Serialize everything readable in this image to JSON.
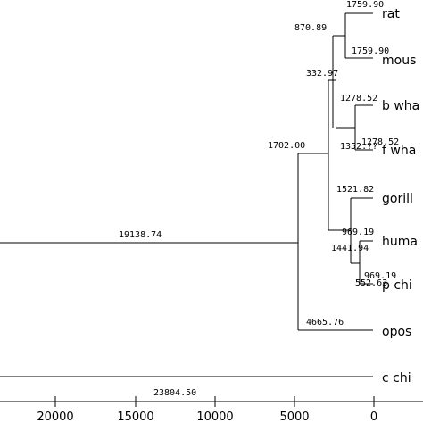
{
  "taxa": [
    "rat",
    "mous",
    "b wha",
    "f wha",
    "gorill",
    "huma",
    "p chi",
    "opos",
    "c chi"
  ],
  "branch_lengths": {
    "rat": "1759.90",
    "mouse": "1759.90",
    "rodent_stem": "870.89",
    "b_whale": "1278.52",
    "f_whale": "1278.52",
    "whale_stem": "1352.??",
    "eutherian_upper_stem": "332.97",
    "gorilla": "1521.82",
    "human": "969.19",
    "p_chimp": "969.19",
    "human_chimp_stem": "552.63",
    "primate_stem": "1441.94",
    "eutherian_stem": "1702.00",
    "opossum": "4665.76",
    "mammal_stem": "19138.74",
    "outgroup": "23804.50"
  },
  "axis": {
    "ticks": [
      "20000",
      "15000",
      "10000",
      "5000",
      "0"
    ],
    "reversed": true
  }
}
